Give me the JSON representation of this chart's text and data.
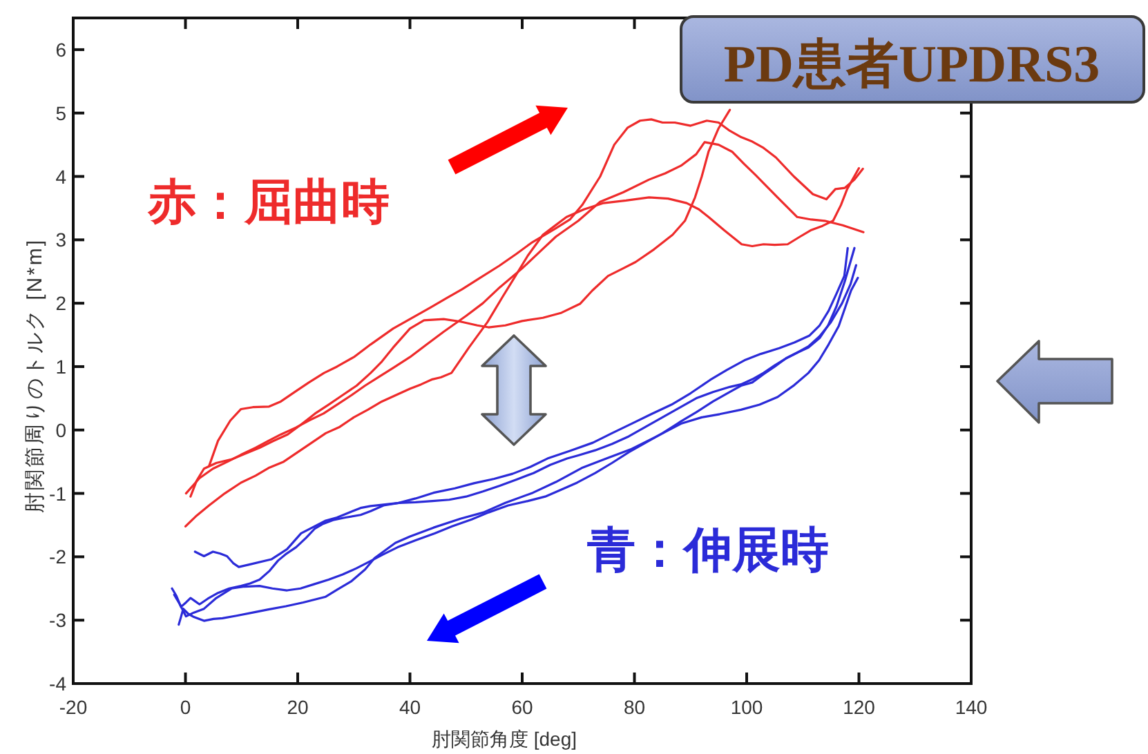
{
  "chart_data": {
    "type": "line",
    "title": "PD患者UPDRS3",
    "xlabel": "肘関節角度 [deg]",
    "ylabel": "肘関節周りのトルク [N*m]",
    "annotations": [
      "赤：屈曲時",
      "青：伸展時"
    ],
    "xlim": [
      -20,
      140
    ],
    "ylim": [
      -4,
      6.5
    ],
    "xticks": [
      -20,
      0,
      20,
      40,
      60,
      80,
      100,
      120,
      140
    ],
    "yticks": [
      -4,
      -3,
      -2,
      -1,
      0,
      1,
      2,
      3,
      4,
      5,
      6
    ],
    "series": [
      {
        "color": "#ee2b2b",
        "x": [
          4.2,
          5.8,
          8,
          9.9,
          12,
          14.9,
          17,
          19.8,
          22,
          24.7,
          27,
          30,
          33,
          37,
          40,
          43.6,
          46.5,
          49.3,
          52.5,
          55.9,
          59,
          61.6,
          65.8,
          68.5,
          70.7,
          73.9,
          76.4,
          78.8,
          81,
          83,
          85,
          87.2,
          90,
          92.9,
          95,
          97,
          99,
          101,
          103,
          105.2,
          108.4,
          111.8,
          114.2,
          115.8,
          117.5,
          119.2,
          120.7
        ],
        "values": [
          -0.57,
          -0.17,
          0.15,
          0.33,
          0.36,
          0.37,
          0.45,
          0.62,
          0.75,
          0.9,
          1.0,
          1.15,
          1.35,
          1.6,
          1.75,
          1.93,
          2.08,
          2.22,
          2.4,
          2.59,
          2.78,
          2.95,
          3.17,
          3.32,
          3.55,
          4.0,
          4.5,
          4.77,
          4.88,
          4.9,
          4.85,
          4.85,
          4.8,
          4.88,
          4.85,
          4.72,
          4.62,
          4.55,
          4.45,
          4.3,
          4.0,
          3.72,
          3.64,
          3.8,
          3.82,
          3.95,
          4.12
        ]
      },
      {
        "color": "#ee2b2b",
        "x": [
          0.1,
          2.5,
          4.9,
          7.5,
          9.9,
          12.5,
          14.8,
          17,
          19.7,
          22,
          24.6,
          27,
          29.6,
          32,
          34.5,
          37,
          40,
          43,
          46,
          50,
          53,
          56,
          60,
          63,
          66,
          70,
          73.9,
          78,
          82.6,
          85.5,
          88.3,
          91,
          92.5,
          95,
          97.4,
          99.5,
          101.6,
          103.5,
          105.5,
          109,
          111.5,
          113.9,
          117.1,
          120.8
        ],
        "values": [
          -1.0,
          -0.76,
          -0.61,
          -0.5,
          -0.39,
          -0.28,
          -0.17,
          -0.07,
          0.04,
          0.15,
          0.26,
          0.4,
          0.55,
          0.7,
          0.84,
          0.98,
          1.15,
          1.35,
          1.55,
          1.8,
          2.0,
          2.25,
          2.55,
          2.8,
          3.05,
          3.3,
          3.6,
          3.75,
          3.95,
          4.05,
          4.17,
          4.35,
          4.54,
          4.5,
          4.39,
          4.2,
          4.02,
          3.85,
          3.67,
          3.36,
          3.32,
          3.3,
          3.23,
          3.12
        ]
      },
      {
        "color": "#ee2b2b",
        "x": [
          0.9,
          2,
          3.3,
          5.5,
          8.3,
          10.5,
          13.2,
          15.5,
          18.2,
          20.5,
          23.1,
          25.5,
          28,
          30.5,
          33,
          35,
          37,
          40,
          42.5,
          46,
          49,
          52,
          54,
          57,
          60,
          63.7,
          67,
          70.3,
          72.5,
          75.3,
          78,
          80.2,
          83.5,
          86.8,
          89,
          90.8,
          92,
          93.2,
          95,
          97
        ],
        "values": [
          -1.05,
          -0.8,
          -0.61,
          -0.52,
          -0.46,
          -0.38,
          -0.28,
          -0.18,
          -0.07,
          0.08,
          0.26,
          0.4,
          0.55,
          0.7,
          0.9,
          1.08,
          1.3,
          1.6,
          1.73,
          1.75,
          1.71,
          1.65,
          1.62,
          1.65,
          1.72,
          1.77,
          1.85,
          1.99,
          2.2,
          2.43,
          2.55,
          2.65,
          2.85,
          3.08,
          3.3,
          3.67,
          4.0,
          4.39,
          4.76,
          5.05
        ]
      },
      {
        "color": "#ee2b2b",
        "x": [
          0,
          2,
          4.2,
          7,
          9.9,
          12.5,
          14.8,
          17.5,
          20,
          22.5,
          25,
          27.5,
          30,
          32.5,
          35,
          37.5,
          40,
          42,
          44,
          45.5,
          47.4,
          50.5,
          53.8,
          56.5,
          58.8,
          61,
          63.7,
          65.8,
          67.9,
          71,
          74.5,
          78.5,
          82.6,
          86,
          89.3,
          91.5,
          93.2,
          96,
          99.1,
          101,
          103,
          105,
          107.3,
          109.5,
          111.4,
          113.5,
          115.4,
          116.8,
          117.9,
          120
        ],
        "values": [
          -1.52,
          -1.35,
          -1.19,
          -1.0,
          -0.83,
          -0.72,
          -0.6,
          -0.5,
          -0.35,
          -0.2,
          -0.05,
          0.05,
          0.2,
          0.32,
          0.45,
          0.55,
          0.65,
          0.72,
          0.8,
          0.83,
          0.9,
          1.3,
          1.7,
          2.1,
          2.43,
          2.75,
          3.08,
          3.22,
          3.36,
          3.48,
          3.58,
          3.62,
          3.67,
          3.65,
          3.58,
          3.48,
          3.36,
          3.15,
          2.93,
          2.9,
          2.93,
          2.92,
          2.93,
          3.05,
          3.15,
          3.22,
          3.3,
          3.55,
          3.8,
          4.13
        ]
      },
      {
        "color": "#2b2bd8",
        "x": [
          1.7,
          3.3,
          4.9,
          6.2,
          7.4,
          8.5,
          9.5,
          11.5,
          15.3,
          18.1,
          20.6,
          25,
          27,
          31.2,
          33,
          35,
          38,
          41,
          44.2,
          48,
          51.4,
          55,
          58.3,
          61.5,
          64.5,
          68.5,
          72.6,
          76,
          79.5,
          83,
          86.6,
          90,
          93.5,
          96.5,
          99.6,
          102.5,
          105.8,
          108.5,
          111.2,
          113,
          114.6,
          116,
          117.4,
          118
        ],
        "values": [
          -1.92,
          -1.99,
          -1.92,
          -1.95,
          -1.99,
          -2.1,
          -2.16,
          -2.12,
          -2.04,
          -1.88,
          -1.63,
          -1.43,
          -1.38,
          -1.23,
          -1.2,
          -1.18,
          -1.15,
          -1.08,
          -0.99,
          -0.92,
          -0.84,
          -0.77,
          -0.69,
          -0.58,
          -0.45,
          -0.33,
          -0.2,
          -0.05,
          0.1,
          0.25,
          0.4,
          0.58,
          0.79,
          0.95,
          1.1,
          1.2,
          1.29,
          1.38,
          1.49,
          1.65,
          1.88,
          2.15,
          2.43,
          2.87
        ]
      },
      {
        "color": "#2b2bd8",
        "x": [
          -2.4,
          -1.6,
          -0.8,
          0.1,
          0.9,
          1.7,
          2.5,
          4,
          5.8,
          7.8,
          9.9,
          11.5,
          13.2,
          15,
          16.5,
          18,
          19.7,
          21.5,
          23,
          24.5,
          26.3,
          28.5,
          31.2,
          33,
          35.3,
          38,
          41,
          44,
          47,
          50,
          53,
          56,
          59,
          62,
          65,
          68,
          70,
          73,
          76,
          79,
          82,
          85,
          88,
          91,
          94,
          97,
          99,
          101,
          103,
          105,
          107,
          109,
          111,
          113,
          114.5,
          116,
          117.5,
          119.2
        ],
        "values": [
          -2.5,
          -2.62,
          -2.79,
          -2.72,
          -2.65,
          -2.7,
          -2.75,
          -2.66,
          -2.57,
          -2.5,
          -2.46,
          -2.42,
          -2.36,
          -2.22,
          -2.06,
          -1.95,
          -1.85,
          -1.7,
          -1.56,
          -1.48,
          -1.42,
          -1.38,
          -1.34,
          -1.28,
          -1.19,
          -1.15,
          -1.14,
          -1.12,
          -1.1,
          -1.05,
          -0.97,
          -0.88,
          -0.78,
          -0.68,
          -0.55,
          -0.45,
          -0.4,
          -0.32,
          -0.22,
          -0.1,
          0.05,
          0.2,
          0.35,
          0.5,
          0.6,
          0.68,
          0.72,
          0.8,
          0.9,
          1.02,
          1.13,
          1.22,
          1.3,
          1.45,
          1.65,
          1.95,
          2.35,
          2.87
        ]
      },
      {
        "color": "#2b2bd8",
        "x": [
          -1.2,
          -0.8,
          -0.4,
          0.5,
          1.5,
          3.3,
          5,
          6.6,
          9.1,
          12,
          14.8,
          17.9,
          21,
          25,
          27,
          29.5,
          32,
          33.7,
          37.4,
          40,
          44.2,
          49,
          53.1,
          57,
          61.9,
          66,
          70.6,
          75,
          79.5,
          84,
          88.3,
          92,
          95.2,
          99,
          102.3,
          105.5,
          108.5,
          111,
          112.9,
          114.6,
          116.4,
          118.6,
          119.8
        ],
        "values": [
          -3.07,
          -2.95,
          -2.82,
          -2.9,
          -2.95,
          -3.01,
          -2.98,
          -2.97,
          -2.93,
          -2.88,
          -2.83,
          -2.78,
          -2.72,
          -2.63,
          -2.52,
          -2.39,
          -2.2,
          -2.02,
          -1.78,
          -1.68,
          -1.54,
          -1.4,
          -1.3,
          -1.15,
          -0.99,
          -0.82,
          -0.6,
          -0.45,
          -0.3,
          -0.1,
          0.1,
          0.2,
          0.25,
          0.32,
          0.4,
          0.52,
          0.71,
          0.9,
          1.1,
          1.35,
          1.64,
          2.2,
          2.4
        ]
      },
      {
        "color": "#2b2bd8",
        "x": [
          -2,
          -1,
          0.1,
          1.5,
          3.3,
          5.5,
          8.2,
          10.5,
          13.2,
          15.5,
          18.1,
          20.5,
          23,
          25.5,
          28,
          30.5,
          32.9,
          35.3,
          37.8,
          41,
          44.4,
          47.5,
          51,
          54,
          57.5,
          61,
          64.1,
          67,
          69.8,
          73,
          76,
          79,
          82,
          85,
          88,
          91,
          94,
          97,
          99,
          101,
          103,
          105,
          107,
          109,
          111,
          113,
          115,
          117,
          118.5,
          119.5
        ],
        "values": [
          -2.6,
          -2.75,
          -2.94,
          -2.88,
          -2.82,
          -2.65,
          -2.5,
          -2.47,
          -2.46,
          -2.5,
          -2.53,
          -2.5,
          -2.43,
          -2.36,
          -2.28,
          -2.18,
          -2.07,
          -1.96,
          -1.85,
          -1.74,
          -1.63,
          -1.52,
          -1.41,
          -1.3,
          -1.19,
          -1.12,
          -1.05,
          -0.94,
          -0.83,
          -0.68,
          -0.52,
          -0.35,
          -0.2,
          -0.05,
          0.12,
          0.28,
          0.45,
          0.6,
          0.7,
          0.75,
          0.88,
          1.0,
          1.13,
          1.22,
          1.32,
          1.48,
          1.7,
          2.0,
          2.3,
          2.6
        ]
      }
    ]
  }
}
